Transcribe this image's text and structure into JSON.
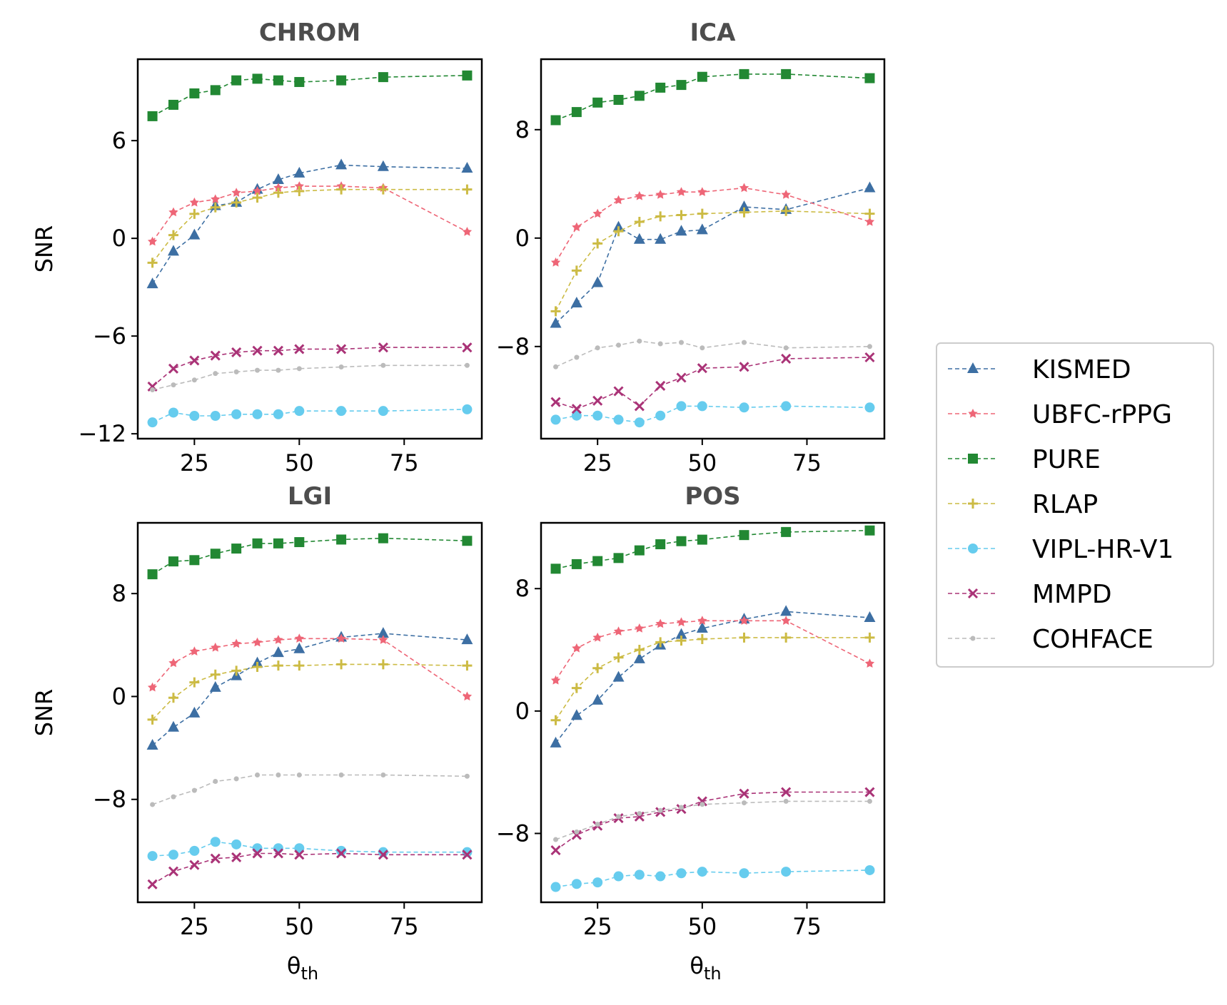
{
  "chart_data": {
    "type": "line",
    "figure": "2x2 grid of SNR vs threshold line plots",
    "x": [
      15,
      20,
      25,
      30,
      35,
      40,
      45,
      50,
      60,
      70,
      90
    ],
    "xticks": [
      25,
      50,
      75
    ],
    "x_label_main": "θ",
    "x_label_sub": "th",
    "y_label": "SNR",
    "legend": {
      "position": "right-center",
      "entries": [
        {
          "name": "KISMED",
          "color": "#3d6fa3",
          "marker": "triangle"
        },
        {
          "name": "UBFC-rPPG",
          "color": "#ee6677",
          "marker": "star"
        },
        {
          "name": "PURE",
          "color": "#228833",
          "marker": "square"
        },
        {
          "name": "RLAP",
          "color": "#ccbb44",
          "marker": "plus"
        },
        {
          "name": "VIPL-HR-V1",
          "color": "#66ccee",
          "marker": "circle"
        },
        {
          "name": "MMPD",
          "color": "#aa3377",
          "marker": "x"
        },
        {
          "name": "COHFACE",
          "color": "#bbbbbb",
          "marker": "point"
        }
      ]
    },
    "panels": [
      {
        "title": "CHROM",
        "ylim": [
          -12.3,
          11.0
        ],
        "yticks": [
          -12,
          -6,
          0,
          6
        ],
        "ytick_labels": [
          "−12",
          "−6",
          "0",
          "6"
        ],
        "show_ylabel": true,
        "show_xlabel": false,
        "series": {
          "KISMED": [
            -2.8,
            -0.8,
            0.2,
            2.0,
            2.2,
            3.0,
            3.6,
            4.0,
            4.5,
            4.4,
            4.3
          ],
          "UBFC-rPPG": [
            -0.2,
            1.6,
            2.2,
            2.4,
            2.8,
            2.9,
            3.1,
            3.2,
            3.2,
            3.1,
            0.4
          ],
          "PURE": [
            7.5,
            8.2,
            8.9,
            9.1,
            9.7,
            9.8,
            9.7,
            9.6,
            9.7,
            9.9,
            10.0
          ],
          "RLAP": [
            -1.5,
            0.2,
            1.5,
            1.9,
            2.2,
            2.5,
            2.8,
            2.9,
            3.0,
            3.0,
            3.0
          ],
          "VIPL-HR-V1": [
            -11.3,
            -10.7,
            -10.9,
            -10.9,
            -10.8,
            -10.8,
            -10.8,
            -10.6,
            -10.6,
            -10.6,
            -10.5
          ],
          "MMPD": [
            -9.1,
            -8.0,
            -7.5,
            -7.2,
            -7.0,
            -6.9,
            -6.9,
            -6.8,
            -6.8,
            -6.7,
            -6.7
          ],
          "COHFACE": [
            -9.3,
            -9.0,
            -8.7,
            -8.3,
            -8.2,
            -8.1,
            -8.1,
            -8.0,
            -7.9,
            -7.8,
            -7.8
          ]
        }
      },
      {
        "title": "ICA",
        "ylim": [
          -14.8,
          13.2
        ],
        "yticks": [
          -8,
          0,
          8
        ],
        "ytick_labels": [
          "−8",
          "0",
          "8"
        ],
        "show_ylabel": false,
        "show_xlabel": false,
        "series": {
          "KISMED": [
            -6.3,
            -4.8,
            -3.3,
            0.8,
            -0.1,
            -0.1,
            0.5,
            0.6,
            2.3,
            2.1,
            3.7
          ],
          "UBFC-rPPG": [
            -1.8,
            0.8,
            1.8,
            2.8,
            3.1,
            3.2,
            3.4,
            3.4,
            3.7,
            3.2,
            1.2
          ],
          "PURE": [
            8.7,
            9.3,
            10.0,
            10.2,
            10.5,
            11.1,
            11.3,
            11.9,
            12.1,
            12.1,
            11.8
          ],
          "RLAP": [
            -5.4,
            -2.4,
            -0.4,
            0.5,
            1.2,
            1.6,
            1.7,
            1.8,
            1.9,
            2.0,
            1.8
          ],
          "VIPL-HR-V1": [
            -13.4,
            -13.1,
            -13.1,
            -13.4,
            -13.6,
            -13.1,
            -12.4,
            -12.4,
            -12.5,
            -12.4,
            -12.5
          ],
          "MMPD": [
            -12.1,
            -12.6,
            -12.0,
            -11.3,
            -12.4,
            -10.9,
            -10.3,
            -9.6,
            -9.5,
            -8.9,
            -8.8
          ],
          "COHFACE": [
            -9.5,
            -8.8,
            -8.1,
            -7.9,
            -7.6,
            -7.8,
            -7.7,
            -8.1,
            -7.7,
            -8.1,
            -8.0
          ]
        }
      },
      {
        "title": "LGI",
        "ylim": [
          -16.0,
          13.5
        ],
        "yticks": [
          -8,
          0,
          8
        ],
        "ytick_labels": [
          "−8",
          "0",
          "8"
        ],
        "show_ylabel": true,
        "show_xlabel": true,
        "series": {
          "KISMED": [
            -3.8,
            -2.4,
            -1.3,
            0.7,
            1.6,
            2.6,
            3.4,
            3.7,
            4.6,
            4.9,
            4.4
          ],
          "UBFC-rPPG": [
            0.7,
            2.6,
            3.5,
            3.8,
            4.1,
            4.2,
            4.4,
            4.5,
            4.5,
            4.4,
            0.0
          ],
          "PURE": [
            9.5,
            10.5,
            10.6,
            11.1,
            11.5,
            11.9,
            11.9,
            12.0,
            12.2,
            12.3,
            12.1
          ],
          "RLAP": [
            -1.8,
            -0.1,
            1.1,
            1.7,
            2.0,
            2.3,
            2.4,
            2.4,
            2.5,
            2.5,
            2.4
          ],
          "VIPL-HR-V1": [
            -12.4,
            -12.3,
            -12.0,
            -11.3,
            -11.5,
            -11.8,
            -11.8,
            -11.8,
            -12.0,
            -12.1,
            -12.1
          ],
          "MMPD": [
            -14.6,
            -13.6,
            -13.1,
            -12.6,
            -12.5,
            -12.2,
            -12.2,
            -12.3,
            -12.2,
            -12.3,
            -12.3
          ],
          "COHFACE": [
            -8.4,
            -7.8,
            -7.3,
            -6.6,
            -6.4,
            -6.1,
            -6.1,
            -6.1,
            -6.1,
            -6.1,
            -6.2
          ]
        }
      },
      {
        "title": "POS",
        "ylim": [
          -12.5,
          12.3
        ],
        "yticks": [
          -8,
          0,
          8
        ],
        "ytick_labels": [
          "−8",
          "0",
          "8"
        ],
        "show_ylabel": false,
        "show_xlabel": true,
        "series": {
          "KISMED": [
            -2.1,
            -0.3,
            0.7,
            2.2,
            3.4,
            4.3,
            5.0,
            5.4,
            6.0,
            6.5,
            6.1
          ],
          "UBFC-rPPG": [
            2.0,
            4.1,
            4.8,
            5.2,
            5.4,
            5.7,
            5.8,
            5.9,
            5.9,
            5.9,
            3.1
          ],
          "PURE": [
            9.3,
            9.6,
            9.8,
            10.0,
            10.5,
            10.9,
            11.1,
            11.2,
            11.5,
            11.7,
            11.8
          ],
          "RLAP": [
            -0.6,
            1.5,
            2.8,
            3.5,
            4.0,
            4.5,
            4.6,
            4.7,
            4.8,
            4.8,
            4.8
          ],
          "VIPL-HR-V1": [
            -11.5,
            -11.3,
            -11.2,
            -10.8,
            -10.7,
            -10.8,
            -10.6,
            -10.5,
            -10.6,
            -10.5,
            -10.4
          ],
          "MMPD": [
            -9.1,
            -8.1,
            -7.5,
            -7.0,
            -6.9,
            -6.6,
            -6.4,
            -5.9,
            -5.4,
            -5.3,
            -5.3
          ],
          "COHFACE": [
            -8.4,
            -7.9,
            -7.4,
            -6.9,
            -6.7,
            -6.5,
            -6.3,
            -6.1,
            -6.0,
            -5.9,
            -5.9
          ]
        }
      }
    ]
  }
}
